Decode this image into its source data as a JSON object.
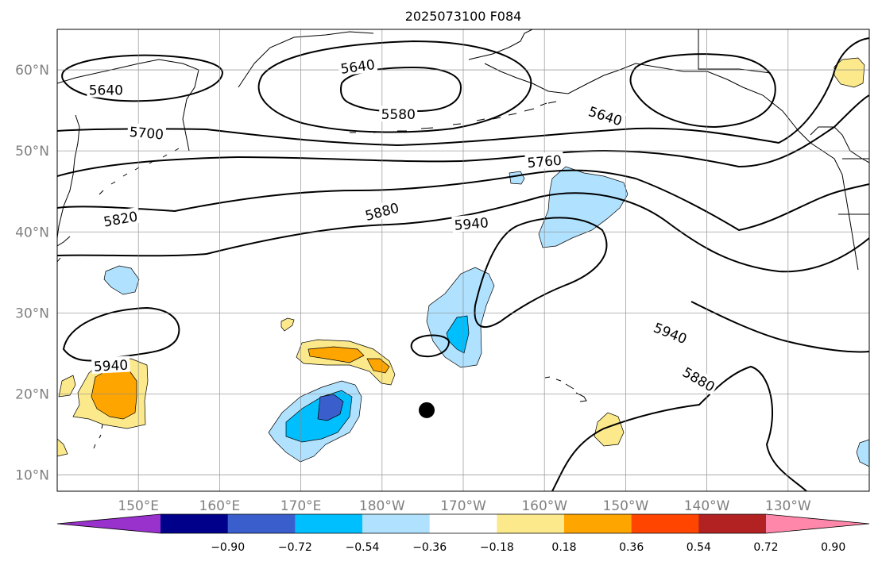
{
  "title": "2025073100 F084",
  "map": {
    "lat_ticks": [
      "10°N",
      "20°N",
      "30°N",
      "40°N",
      "50°N",
      "60°N"
    ],
    "lon_ticks": [
      "150°E",
      "160°E",
      "170°E",
      "180°W",
      "170°W",
      "160°W",
      "150°W",
      "140°W",
      "130°W"
    ],
    "lat_values": [
      10,
      20,
      30,
      40,
      50,
      60
    ],
    "lon_values": [
      150,
      160,
      170,
      180,
      190,
      200,
      210,
      220,
      230
    ],
    "extent": {
      "lon_min": 140,
      "lon_max": 240,
      "lat_min": 8,
      "lat_max": 65
    },
    "grid": true,
    "marker": {
      "lon": 185.5,
      "lat": 18.0,
      "color": "#000000"
    }
  },
  "contours": {
    "color": "#000000",
    "labels": [
      {
        "text": "5640",
        "lon": 146.0,
        "lat": 57.5,
        "rot": 0
      },
      {
        "text": "5640",
        "lon": 177.0,
        "lat": 60.4,
        "rot": -8
      },
      {
        "text": "5580",
        "lon": 182.0,
        "lat": 54.5,
        "rot": 0
      },
      {
        "text": "5640",
        "lon": 207.5,
        "lat": 54.3,
        "rot": 18
      },
      {
        "text": "5700",
        "lon": 151.0,
        "lat": 52.2,
        "rot": 5
      },
      {
        "text": "5760",
        "lon": 200.0,
        "lat": 48.7,
        "rot": -5
      },
      {
        "text": "5820",
        "lon": 147.8,
        "lat": 41.6,
        "rot": -10
      },
      {
        "text": "5880",
        "lon": 180.0,
        "lat": 42.5,
        "rot": -15
      },
      {
        "text": "5940",
        "lon": 191.0,
        "lat": 41.0,
        "rot": -5
      },
      {
        "text": "5940",
        "lon": 215.5,
        "lat": 27.5,
        "rot": 22
      },
      {
        "text": "5880",
        "lon": 219.0,
        "lat": 21.8,
        "rot": 30
      },
      {
        "text": "5940",
        "lon": 129.0,
        "lat": 23.5,
        "rot": -3
      }
    ]
  },
  "colorbar": {
    "tick_labels": [
      "−0.90",
      "−0.72",
      "−0.54",
      "−0.36",
      "−0.18",
      "0.18",
      "0.36",
      "0.54",
      "0.72",
      "0.90"
    ],
    "colors": [
      "#9932cc",
      "#00008b",
      "#3a5fcd",
      "#00bfff",
      "#b0e2ff",
      "#ffffff",
      "#fbe98b",
      "#ffa500",
      "#ff4500",
      "#b22222",
      "#ff88aa"
    ]
  },
  "shading_colors": {
    "light_blue": "#b0e2ff",
    "mid_blue": "#00bfff",
    "royal_blue": "#3a5fcd",
    "yellow": "#fbe98b",
    "orange": "#ffa500"
  }
}
